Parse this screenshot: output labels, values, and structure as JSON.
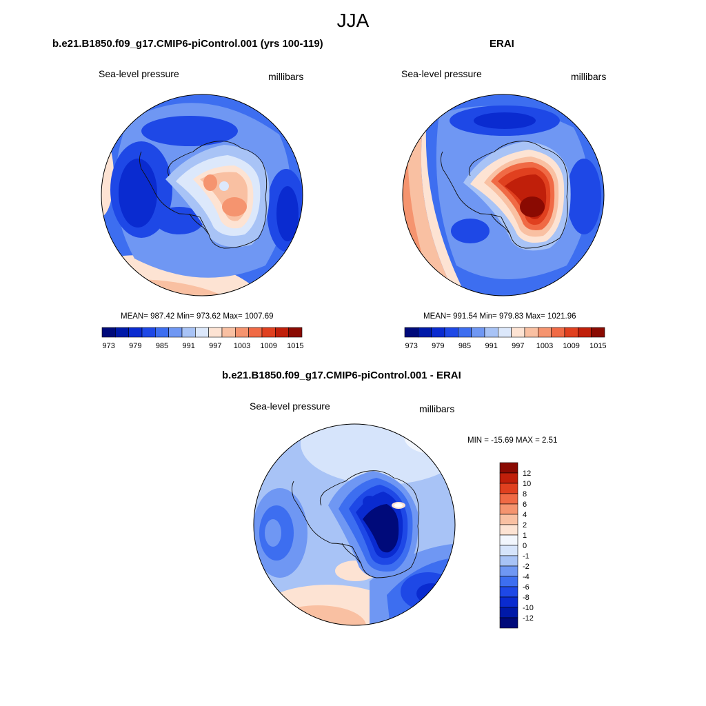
{
  "figure": {
    "title": "JJA"
  },
  "panels": [
    {
      "title": "b.e21.B1850.f09_g17.CMIP6-piControl.001 (yrs 100-119)",
      "variable": "Sea-level pressure",
      "units": "millibars",
      "stats_text": "MEAN= 987.42  Min= 973.62  Max= 1007.69"
    },
    {
      "title": "ERAI",
      "variable": "Sea-level pressure",
      "units": "millibars",
      "stats_text": "MEAN= 991.54  Min= 979.83  Max= 1021.96"
    },
    {
      "title": "b.e21.B1850.f09_g17.CMIP6-piControl.001 - ERAI",
      "variable": "Sea-level pressure",
      "units": "millibars",
      "stats_text": "MIN = -15.69 MAX =   2.51"
    }
  ],
  "colorbar_abs": {
    "ticks": [
      "973",
      "979",
      "985",
      "991",
      "997",
      "1003",
      "1009",
      "1015"
    ],
    "colors": [
      "#000a7a",
      "#0019a8",
      "#0a2bd0",
      "#1e48e6",
      "#3d6ef0",
      "#6f97f3",
      "#a8c3f6",
      "#dce8fb",
      "#fde3d3",
      "#f9c0a2",
      "#f5946f",
      "#f06a45",
      "#e0401f",
      "#c01f0a",
      "#8a0a02"
    ]
  },
  "colorbar_diff": {
    "ticks": [
      "12",
      "10",
      "8",
      "6",
      "4",
      "2",
      "1",
      "0",
      "-1",
      "-2",
      "-4",
      "-6",
      "-8",
      "-10",
      "-12"
    ],
    "colors": [
      "#8a0a02",
      "#c01f0a",
      "#e0401f",
      "#f06a45",
      "#f5946f",
      "#f9c0a2",
      "#fde3d3",
      "#f2f6fd",
      "#d6e4fb",
      "#a8c3f6",
      "#6f97f3",
      "#3d6ef0",
      "#1e48e6",
      "#0a2bd0",
      "#0019a8",
      "#000a7a"
    ]
  }
}
